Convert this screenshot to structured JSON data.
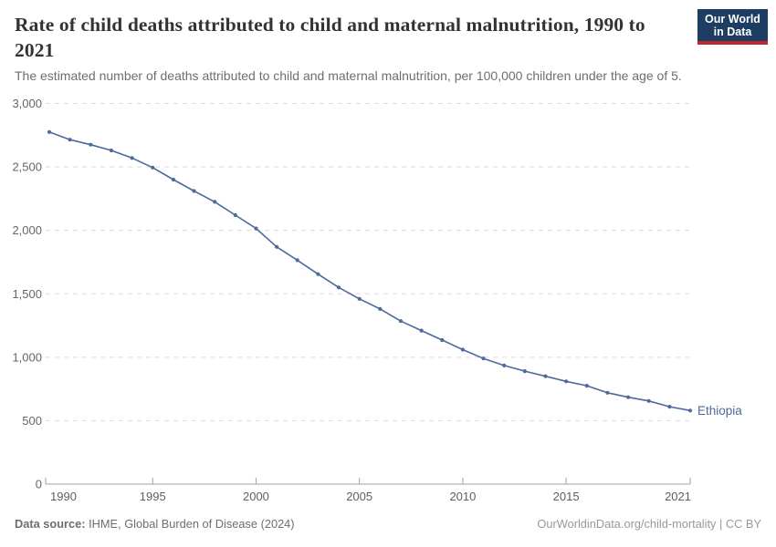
{
  "header": {
    "title": "Rate of child deaths attributed to child and maternal malnutrition, 1990 to 2021",
    "subtitle": "The estimated number of deaths attributed to child and maternal malnutrition, per 100,000 children under the age of 5.",
    "logo": {
      "line1": "Our World",
      "line2": "in Data",
      "bg_color": "#1d3d63",
      "accent_color": "#c0262d"
    }
  },
  "chart_data": {
    "type": "line",
    "title": "Rate of child deaths attributed to child and maternal malnutrition, 1990 to 2021",
    "xlabel": "",
    "ylabel": "",
    "xlim": [
      1990,
      2021
    ],
    "ylim": [
      0,
      3000
    ],
    "xticks": [
      1990,
      1995,
      2000,
      2005,
      2010,
      2015,
      2021
    ],
    "yticks": [
      0,
      500,
      1000,
      1500,
      2000,
      2500,
      3000
    ],
    "grid": "horizontal-dashed",
    "legend_position": "end-of-line-label",
    "colors": {
      "gridline": "#dcdcdc",
      "axis": "#a3a3a3",
      "y_tick_label": "#666666",
      "x_tick_label": "#5e5e5e"
    },
    "series": [
      {
        "name": "Ethiopia",
        "color": "#4c6a9c",
        "x": [
          1990,
          1991,
          1992,
          1993,
          1994,
          1995,
          1996,
          1997,
          1998,
          1999,
          2000,
          2001,
          2002,
          2003,
          2004,
          2005,
          2006,
          2007,
          2008,
          2009,
          2010,
          2011,
          2012,
          2013,
          2014,
          2015,
          2016,
          2017,
          2018,
          2019,
          2020,
          2021
        ],
        "values": [
          2775,
          2715,
          2675,
          2630,
          2570,
          2495,
          2400,
          2310,
          2225,
          2120,
          2015,
          1870,
          1765,
          1655,
          1550,
          1460,
          1380,
          1285,
          1210,
          1135,
          1060,
          990,
          935,
          890,
          850,
          810,
          775,
          720,
          685,
          655,
          610,
          580
        ]
      }
    ]
  },
  "footer": {
    "datasource_label": "Data source:",
    "datasource_value": " IHME, Global Burden of Disease (2024)",
    "citation": "OurWorldinData.org/child-mortality | CC BY"
  }
}
